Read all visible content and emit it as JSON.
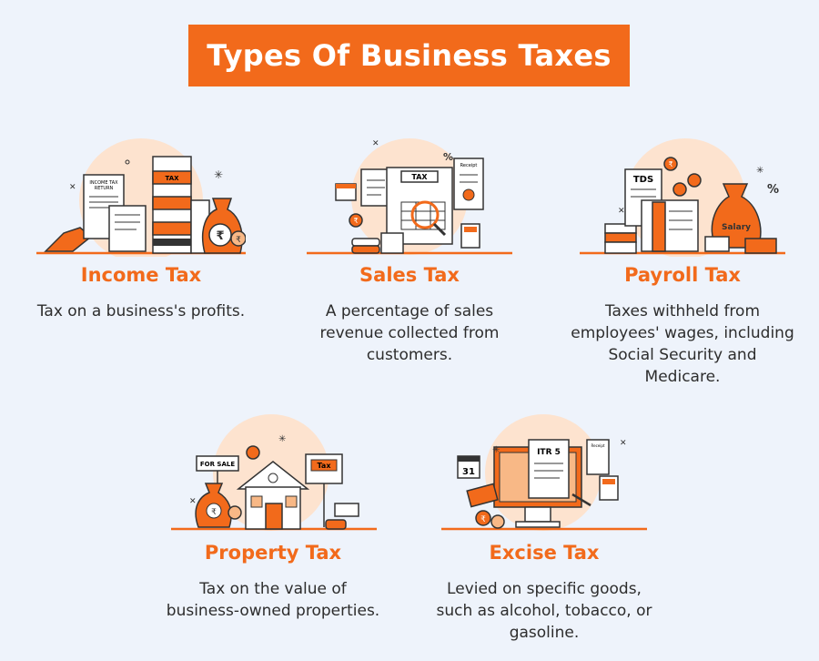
{
  "title": "Types Of Business Taxes",
  "colors": {
    "accent": "#f26a1b",
    "background": "#eef3fb",
    "text": "#2d2d2d",
    "peach": "#fde3cf"
  },
  "cards": [
    {
      "title": "Income Tax",
      "description_lines": [
        "Tax on a business's profits."
      ],
      "illustration": {
        "icon": "income-tax-illustration",
        "labels": {
          "return_doc_line1": "INCOME TAX",
          "return_doc_line2": "RETURN",
          "folder": "TAX",
          "currency": "₹"
        }
      }
    },
    {
      "title": "Sales Tax",
      "description_lines": [
        "A percentage of sales",
        "revenue collected from",
        "customers."
      ],
      "illustration": {
        "icon": "sales-tax-illustration",
        "labels": {
          "board": "TAX",
          "receipt": "Receipt",
          "percent": "%",
          "currency": "₹"
        }
      }
    },
    {
      "title": "Payroll Tax",
      "description_lines": [
        "Taxes withheld from",
        "employees' wages, including",
        "Social Security and",
        "Medicare."
      ],
      "illustration": {
        "icon": "payroll-tax-illustration",
        "labels": {
          "doc": "TDS",
          "bag": "Salary",
          "percent": "%",
          "currency": "₹"
        }
      }
    },
    {
      "title": "Property Tax",
      "description_lines": [
        "Tax on the value of",
        "business-owned properties."
      ],
      "illustration": {
        "icon": "property-tax-illustration",
        "labels": {
          "sign": "FOR SALE",
          "tag": "Tax",
          "currency": "₹"
        }
      }
    },
    {
      "title": "Excise Tax",
      "description_lines": [
        "Levied on specific goods,",
        "such as alcohol, tobacco, or",
        "gasoline."
      ],
      "illustration": {
        "icon": "excise-tax-illustration",
        "labels": {
          "doc": "ITR 5",
          "calendar": "31",
          "receipt": "Receipt",
          "currency": "₹"
        }
      }
    }
  ]
}
